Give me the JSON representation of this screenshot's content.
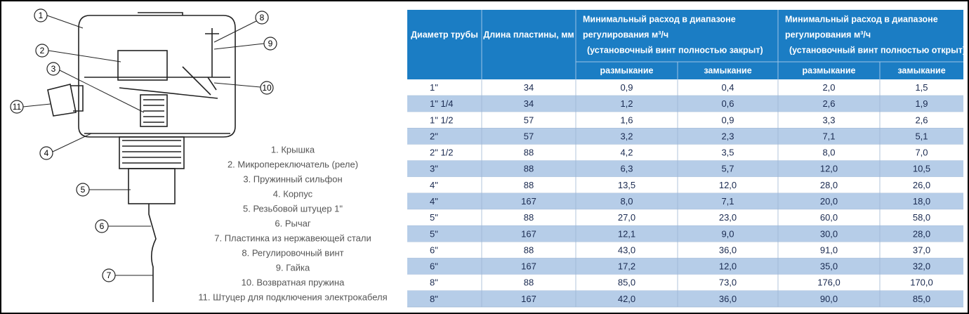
{
  "diagram": {
    "callouts": [
      "1",
      "2",
      "3",
      "4",
      "5",
      "6",
      "7",
      "8",
      "9",
      "10",
      "11"
    ]
  },
  "legend": {
    "items": [
      "1. Крышка",
      "2. Микропереключатель (реле)",
      "3. Пружинный сильфон",
      "4. Корпус",
      "5. Резьбовой штуцер 1\"",
      "6. Рычаг",
      "7. Пластинка из нержавеющей стали",
      "8. Регулировочный винт",
      "9. Гайка",
      "10. Возвратная пружина",
      "11. Штуцер для подключения электрокабеля"
    ]
  },
  "table": {
    "header": [
      "Диаметр трубы",
      "Длина пластины, мм",
      [
        "Минимальный расход в диапазоне",
        "регулирования м³/ч",
        "(установочный винт полностью закрыт)"
      ],
      [
        "Минимальный расход в диапазоне",
        "регулирования м³/ч",
        "(установочный винт полностью открыт)"
      ]
    ],
    "subheader": [
      "размыкание",
      "замыкание",
      "размыкание",
      "замыкание"
    ],
    "rows": [
      [
        "1\"",
        "34",
        "0,9",
        "0,4",
        "2,0",
        "1,5"
      ],
      [
        "1\" 1/4",
        "34",
        "1,2",
        "0,6",
        "2,6",
        "1,9"
      ],
      [
        "1\" 1/2",
        "57",
        "1,6",
        "0,9",
        "3,3",
        "2,6"
      ],
      [
        "2\"",
        "57",
        "3,2",
        "2,3",
        "7,1",
        "5,1"
      ],
      [
        "2\" 1/2",
        "88",
        "4,2",
        "3,5",
        "8,0",
        "7,0"
      ],
      [
        "3\"",
        "88",
        "6,3",
        "5,7",
        "12,0",
        "10,5"
      ],
      [
        "4\"",
        "88",
        "13,5",
        "12,0",
        "28,0",
        "26,0"
      ],
      [
        "4\"",
        "167",
        "8,0",
        "7,1",
        "20,0",
        "18,0"
      ],
      [
        "5\"",
        "88",
        "27,0",
        "23,0",
        "60,0",
        "58,0"
      ],
      [
        "5\"",
        "167",
        "12,1",
        "9,0",
        "30,0",
        "28,0"
      ],
      [
        "6\"",
        "88",
        "43,0",
        "36,0",
        "91,0",
        "37,0"
      ],
      [
        "6\"",
        "167",
        "17,2",
        "12,0",
        "35,0",
        "32,0"
      ],
      [
        "8\"",
        "88",
        "85,0",
        "73,0",
        "176,0",
        "170,0"
      ],
      [
        "8\"",
        "167",
        "42,0",
        "36,0",
        "90,0",
        "85,0"
      ]
    ]
  }
}
